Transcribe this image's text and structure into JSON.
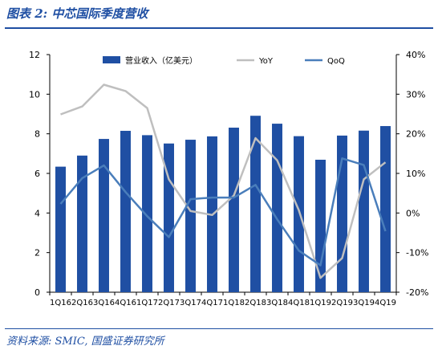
{
  "header": {
    "title": "图表 2:  中芯国际季度营收"
  },
  "footer": {
    "source": "资料来源:  SMIC,  国盛证券研究所"
  },
  "chart_data": {
    "type": "bar",
    "categories": [
      "1Q16",
      "2Q16",
      "3Q16",
      "4Q16",
      "1Q17",
      "2Q17",
      "3Q17",
      "4Q17",
      "1Q18",
      "2Q18",
      "3Q18",
      "4Q18",
      "1Q19",
      "2Q19",
      "3Q19",
      "4Q19"
    ],
    "series": [
      {
        "name": "营业收入（亿美元）",
        "type": "bar",
        "axis": "left",
        "color": "#1f4fa3",
        "values": [
          6.34,
          6.9,
          7.74,
          8.15,
          7.93,
          7.51,
          7.7,
          7.87,
          8.31,
          8.91,
          8.51,
          7.88,
          6.69,
          7.91,
          8.16,
          8.39
        ]
      },
      {
        "name": "YoY",
        "type": "line",
        "axis": "right",
        "color": "#bfbfbf",
        "values": [
          24.9,
          26.9,
          32.4,
          30.8,
          26.5,
          8.5,
          0.5,
          -0.5,
          4.4,
          18.9,
          13.3,
          0.7,
          -16.4,
          -11.4,
          8.5,
          12.8
        ]
      },
      {
        "name": "QoQ",
        "type": "line",
        "axis": "right",
        "color": "#4a7ebb",
        "values": [
          2.3,
          8.8,
          12.0,
          5.3,
          -0.8,
          -6.1,
          3.5,
          3.9,
          3.9,
          7.1,
          -1.6,
          -9.5,
          -13.2,
          13.8,
          12.1,
          -4.6
        ]
      }
    ],
    "y_left": {
      "min": 0,
      "max": 12,
      "ticks": [
        "0",
        "2",
        "4",
        "6",
        "8",
        "10",
        "12"
      ]
    },
    "y_right": {
      "min": -20,
      "max": 40,
      "ticks": [
        "-20%",
        "-10%",
        "0%",
        "10%",
        "20%",
        "30%",
        "40%"
      ]
    },
    "legend_position": "top",
    "grid": false
  }
}
